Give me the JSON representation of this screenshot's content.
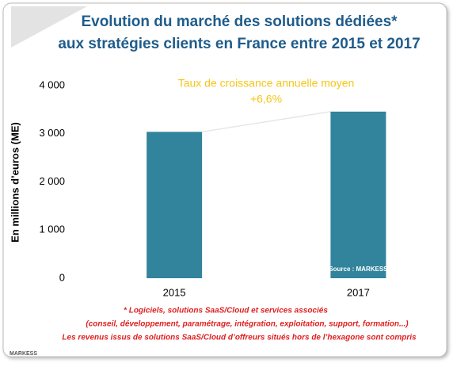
{
  "chart_data": {
    "type": "bar",
    "title": [
      "Evolution du marché des solutions dédiées*",
      "aux stratégies clients en France entre 2015 et 2017"
    ],
    "y_label": "En millions d’euros (ME)",
    "categories": [
      "2015",
      "2017"
    ],
    "values": [
      3040,
      3460
    ],
    "color": "#31849b",
    "ylim": [
      0,
      4000
    ],
    "yticks": [
      0,
      {
        "value": 1000,
        "label": "1 000"
      },
      {
        "value": 2000,
        "label": "2 000"
      },
      {
        "value": 3000,
        "label": "3 000"
      },
      {
        "value": 4000,
        "label": "4 000"
      }
    ],
    "grid": false,
    "annotation": [
      "Taux de croissance annuelle moyen",
      "+6,6%"
    ],
    "source": "Source : MARKESS",
    "footnotes": [
      "* Logiciels, solutions SaaS/Cloud et services associés",
      "(conseil, développement, paramétrage, intégration, exploitation, support, formation...)",
      "Les revenus issus de solutions SaaS/Cloud d’offreurs situés hors de l’hexagone sont compris"
    ],
    "logo": "MARKESS"
  }
}
